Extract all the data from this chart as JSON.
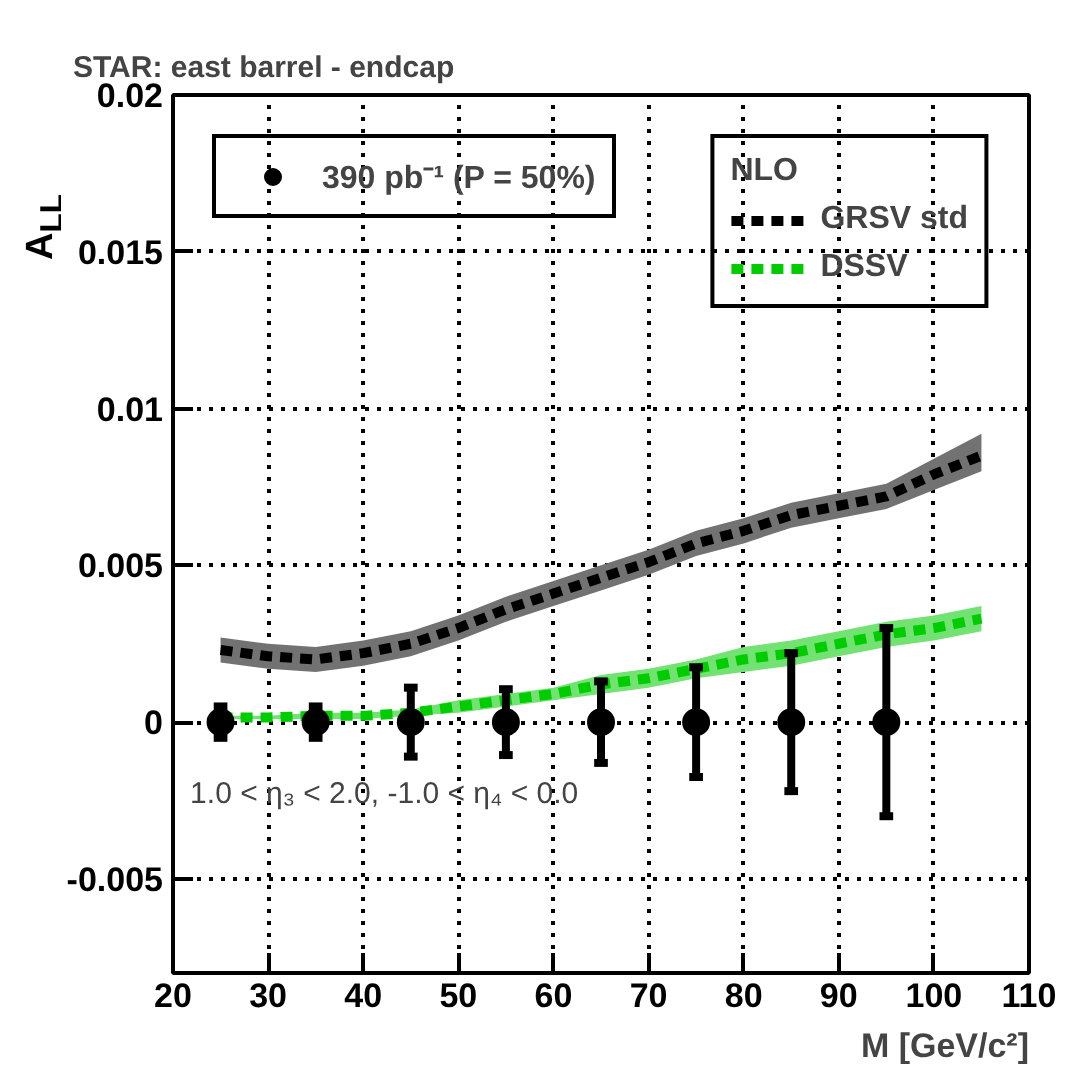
{
  "chart_data": {
    "type": "line",
    "title": "STAR: east barrel - endcap",
    "xlabel": "M [GeV/c²]",
    "ylabel": "A$_{LL}$",
    "legend_title": "NLO",
    "xlim": [
      20,
      110
    ],
    "xticks": [
      20,
      30,
      40,
      50,
      60,
      70,
      80,
      90,
      100,
      110
    ],
    "ylim": [
      -0.008,
      0.02
    ],
    "yticks": [
      -0.005,
      0,
      0.005,
      0.01,
      0.015,
      0.02
    ],
    "grid": true,
    "legend": "top",
    "line_style": "dashed",
    "annotations": [
      "1.0 < η₃ < 2.0, -1.0 < η₄ < 0.0"
    ],
    "series": [
      {
        "name": "390 pb⁻¹ (P = 50%)",
        "type": "scatter",
        "marker": "circle",
        "color": "#000000",
        "x": [
          25,
          35,
          45,
          55,
          65,
          75,
          85,
          95
        ],
        "values": [
          0,
          0,
          0,
          0,
          0,
          0,
          0,
          0
        ],
        "errors": [
          0.0005,
          0.0005,
          0.0011,
          0.00105,
          0.0013,
          0.00175,
          0.0022,
          0.003
        ]
      },
      {
        "name": "GRSV std",
        "color": "#000000",
        "x": [
          25,
          30,
          35,
          40,
          45,
          50,
          55,
          60,
          65,
          70,
          75,
          80,
          85,
          90,
          95,
          100,
          105
        ],
        "values": [
          0.0023,
          0.0021,
          0.002,
          0.0022,
          0.0025,
          0.003,
          0.0036,
          0.0041,
          0.0046,
          0.0051,
          0.0057,
          0.0061,
          0.0066,
          0.0069,
          0.0072,
          0.0079,
          0.0085
        ],
        "lower": [
          0.0019,
          0.0017,
          0.0016,
          0.0018,
          0.0021,
          0.0026,
          0.0032,
          0.0037,
          0.0042,
          0.0047,
          0.0053,
          0.0057,
          0.0062,
          0.0065,
          0.0068,
          0.0074,
          0.008
        ],
        "upper": [
          0.0027,
          0.0025,
          0.0024,
          0.0026,
          0.0029,
          0.0034,
          0.004,
          0.0045,
          0.005,
          0.0055,
          0.0061,
          0.0065,
          0.007,
          0.0073,
          0.0076,
          0.0084,
          0.0092
        ]
      },
      {
        "name": "DSSV",
        "color": "#00cc00",
        "x": [
          25,
          30,
          35,
          40,
          45,
          50,
          55,
          60,
          65,
          70,
          75,
          80,
          85,
          90,
          95,
          100,
          105
        ],
        "values": [
          0.00015,
          0.00015,
          0.0002,
          0.0002,
          0.0003,
          0.0005,
          0.0007,
          0.0009,
          0.0012,
          0.0014,
          0.0017,
          0.002,
          0.0022,
          0.0025,
          0.0028,
          0.003,
          0.0033
        ],
        "lower": [
          0.0001,
          0.0001,
          0.0001,
          0.0001,
          0.0002,
          0.0003,
          0.0005,
          0.0007,
          0.0009,
          0.0011,
          0.0014,
          0.0016,
          0.0018,
          0.0021,
          0.0024,
          0.0026,
          0.0029
        ],
        "upper": [
          0.0002,
          0.0002,
          0.0003,
          0.0003,
          0.0004,
          0.0007,
          0.0009,
          0.0011,
          0.0015,
          0.0017,
          0.002,
          0.0024,
          0.0026,
          0.0029,
          0.0032,
          0.0034,
          0.0037
        ]
      }
    ]
  }
}
